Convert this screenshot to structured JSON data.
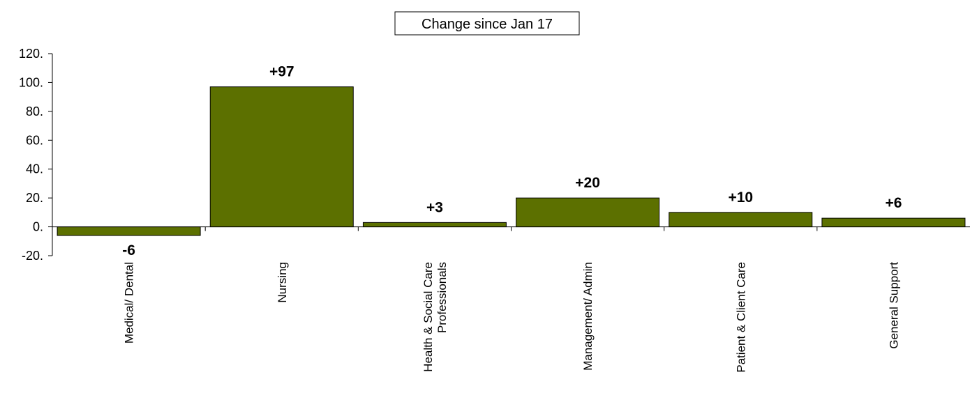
{
  "chart_data": {
    "type": "bar",
    "title": "Change since Jan 17",
    "categories": [
      [
        "Medical/ Dental"
      ],
      [
        "Nursing"
      ],
      [
        "Health & Social Care",
        "Professionals"
      ],
      [
        "Management/ Admin"
      ],
      [
        "Patient & Client Care"
      ],
      [
        "General Support"
      ]
    ],
    "values": [
      -6,
      97,
      3,
      20,
      10,
      6
    ],
    "data_labels": [
      "-6",
      "+97",
      "+3",
      "+20",
      "+10",
      "+6"
    ],
    "y_ticks": [
      "120.",
      "100.",
      "80.",
      "60.",
      "40.",
      "20.",
      "0.",
      "-20."
    ],
    "ylim": [
      -20,
      120
    ],
    "grid": false,
    "legend": "none",
    "bar_color": "#5c7000",
    "bar_edge_color": "#000000"
  }
}
